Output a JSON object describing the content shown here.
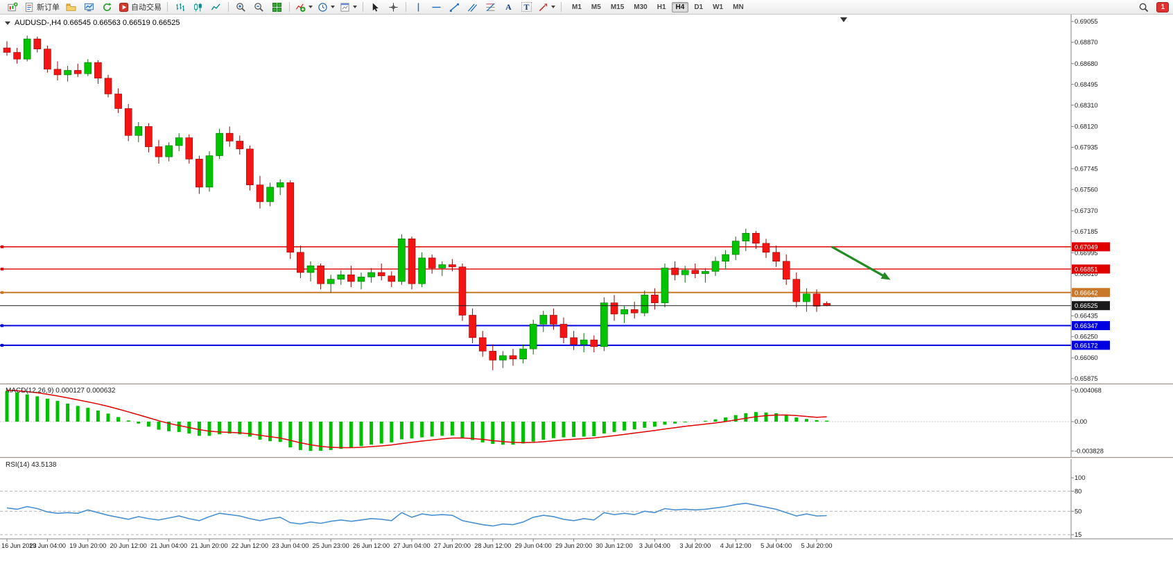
{
  "toolbar": {
    "new_order_label": "新订单",
    "autotrading_label": "自动交易",
    "timeframes": [
      "M1",
      "M5",
      "M15",
      "M30",
      "H1",
      "H4",
      "D1",
      "W1",
      "MN"
    ],
    "active_timeframe": "H4",
    "notification_count": "1",
    "text_tool_glyph": "A",
    "label_tool_glyph": "T"
  },
  "chart": {
    "symbol_line": "AUDUSD-,H4 0.66545 0.66563 0.66519 0.66525"
  },
  "indicators": {
    "macd_label": "MACD(12,26,9) 0.000127 0.000632",
    "rsi_label": "RSI(14) 43.5138"
  },
  "chart_data": {
    "type": "candlestick",
    "symbol": "AUDUSD",
    "timeframe": "H4",
    "quote": {
      "open": "0.66545",
      "high": "0.66563",
      "low": "0.66519",
      "close": "0.66525"
    },
    "bull_color": "#00c400",
    "bear_color": "#f51414",
    "y_axis": {
      "max": 0.69055,
      "min": 0.65875,
      "labels": [
        "0.69055",
        "0.68870",
        "0.68680",
        "0.68495",
        "0.68310",
        "0.68120",
        "0.67935",
        "0.67745",
        "0.67560",
        "0.67370",
        "0.67185",
        "0.66995",
        "0.66810",
        "0.66620",
        "0.66435",
        "0.66250",
        "0.66060",
        "0.65875"
      ]
    },
    "x_axis": {
      "bars_per_label": 4,
      "labels": [
        "16 Jun 2023",
        "19 Jun 04:00",
        "19 Jun 20:00",
        "20 Jun 12:00",
        "21 Jun 04:00",
        "21 Jun 20:00",
        "22 Jun 12:00",
        "23 Jun 04:00",
        "25 Jun 23:00",
        "26 Jun 12:00",
        "27 Jun 04:00",
        "27 Jun 20:00",
        "28 Jun 12:00",
        "29 Jun 04:00",
        "29 Jun 20:00",
        "30 Jun 12:00",
        "3 Jul 04:00",
        "3 Jul 20:00",
        "4 Jul 12:00",
        "5 Jul 04:00",
        "5 Jul 20:00"
      ]
    },
    "candles": [
      [
        0.6882,
        0.6888,
        0.6875,
        0.6878
      ],
      [
        0.6878,
        0.6882,
        0.6868,
        0.6872
      ],
      [
        0.6872,
        0.6893,
        0.687,
        0.689
      ],
      [
        0.689,
        0.6892,
        0.6878,
        0.6881
      ],
      [
        0.6881,
        0.6884,
        0.686,
        0.6863
      ],
      [
        0.6863,
        0.687,
        0.6853,
        0.6858
      ],
      [
        0.6858,
        0.6866,
        0.6852,
        0.6862
      ],
      [
        0.6862,
        0.6868,
        0.6856,
        0.6859
      ],
      [
        0.6859,
        0.6872,
        0.6857,
        0.6869
      ],
      [
        0.6869,
        0.6871,
        0.685,
        0.6855
      ],
      [
        0.6855,
        0.6858,
        0.6838,
        0.6841
      ],
      [
        0.6841,
        0.6846,
        0.6824,
        0.6828
      ],
      [
        0.6828,
        0.6832,
        0.6799,
        0.6804
      ],
      [
        0.6804,
        0.6816,
        0.6798,
        0.6812
      ],
      [
        0.6812,
        0.6815,
        0.6789,
        0.6794
      ],
      [
        0.6794,
        0.68,
        0.6779,
        0.6785
      ],
      [
        0.6785,
        0.6798,
        0.6781,
        0.6795
      ],
      [
        0.6795,
        0.6806,
        0.679,
        0.6802
      ],
      [
        0.6802,
        0.6805,
        0.6779,
        0.6783
      ],
      [
        0.6783,
        0.6786,
        0.6752,
        0.6758
      ],
      [
        0.6758,
        0.679,
        0.6754,
        0.6786
      ],
      [
        0.6786,
        0.681,
        0.6783,
        0.6806
      ],
      [
        0.6806,
        0.6812,
        0.6794,
        0.6799
      ],
      [
        0.6799,
        0.6804,
        0.6787,
        0.6792
      ],
      [
        0.6792,
        0.6795,
        0.6755,
        0.676
      ],
      [
        0.676,
        0.6768,
        0.6739,
        0.6745
      ],
      [
        0.6745,
        0.6762,
        0.6741,
        0.6758
      ],
      [
        0.6758,
        0.6765,
        0.6751,
        0.6762
      ],
      [
        0.6762,
        0.6764,
        0.6694,
        0.67
      ],
      [
        0.67,
        0.6706,
        0.6677,
        0.6682
      ],
      [
        0.6682,
        0.6692,
        0.6674,
        0.6688
      ],
      [
        0.6688,
        0.669,
        0.6667,
        0.6672
      ],
      [
        0.6672,
        0.668,
        0.6664,
        0.6676
      ],
      [
        0.6676,
        0.6684,
        0.6671,
        0.668
      ],
      [
        0.668,
        0.6688,
        0.6669,
        0.6674
      ],
      [
        0.6674,
        0.6682,
        0.6667,
        0.6678
      ],
      [
        0.6678,
        0.6686,
        0.6673,
        0.6682
      ],
      [
        0.6682,
        0.669,
        0.6675,
        0.6679
      ],
      [
        0.6679,
        0.6683,
        0.6669,
        0.6674
      ],
      [
        0.6674,
        0.6716,
        0.6671,
        0.6712
      ],
      [
        0.6712,
        0.6714,
        0.6667,
        0.6672
      ],
      [
        0.6672,
        0.67,
        0.6669,
        0.6695
      ],
      [
        0.6695,
        0.6698,
        0.6681,
        0.6686
      ],
      [
        0.6686,
        0.6692,
        0.6679,
        0.6689
      ],
      [
        0.6689,
        0.6694,
        0.6683,
        0.6687
      ],
      [
        0.6687,
        0.669,
        0.6639,
        0.6644
      ],
      [
        0.6644,
        0.665,
        0.6619,
        0.6624
      ],
      [
        0.6624,
        0.663,
        0.6607,
        0.6612
      ],
      [
        0.6612,
        0.6618,
        0.6595,
        0.6604
      ],
      [
        0.6604,
        0.6612,
        0.6597,
        0.6608
      ],
      [
        0.6608,
        0.6614,
        0.6599,
        0.6605
      ],
      [
        0.6605,
        0.6618,
        0.6601,
        0.6614
      ],
      [
        0.6614,
        0.664,
        0.6609,
        0.6636
      ],
      [
        0.6636,
        0.6648,
        0.6629,
        0.6644
      ],
      [
        0.6644,
        0.665,
        0.6631,
        0.6636
      ],
      [
        0.6636,
        0.6642,
        0.6619,
        0.6624
      ],
      [
        0.6624,
        0.663,
        0.6613,
        0.6618
      ],
      [
        0.6618,
        0.6628,
        0.6611,
        0.6622
      ],
      [
        0.6622,
        0.6626,
        0.6611,
        0.6616
      ],
      [
        0.6616,
        0.666,
        0.6612,
        0.6655
      ],
      [
        0.6655,
        0.6662,
        0.6639,
        0.6645
      ],
      [
        0.6645,
        0.6652,
        0.6637,
        0.6649
      ],
      [
        0.6649,
        0.6656,
        0.6641,
        0.6646
      ],
      [
        0.6646,
        0.6666,
        0.6643,
        0.6662
      ],
      [
        0.6662,
        0.6668,
        0.6649,
        0.6655
      ],
      [
        0.6655,
        0.669,
        0.6651,
        0.6686
      ],
      [
        0.6686,
        0.6692,
        0.6675,
        0.668
      ],
      [
        0.668,
        0.6688,
        0.6673,
        0.6684
      ],
      [
        0.6684,
        0.669,
        0.6677,
        0.6681
      ],
      [
        0.6681,
        0.6686,
        0.6673,
        0.6683
      ],
      [
        0.6683,
        0.6696,
        0.6679,
        0.6692
      ],
      [
        0.6692,
        0.6702,
        0.6685,
        0.6698
      ],
      [
        0.6698,
        0.6714,
        0.6693,
        0.671
      ],
      [
        0.671,
        0.6721,
        0.6701,
        0.6717
      ],
      [
        0.6717,
        0.6719,
        0.6703,
        0.6708
      ],
      [
        0.6708,
        0.6712,
        0.6695,
        0.67
      ],
      [
        0.67,
        0.6706,
        0.6687,
        0.6692
      ],
      [
        0.6692,
        0.6698,
        0.6671,
        0.6676
      ],
      [
        0.6676,
        0.6682,
        0.6651,
        0.6656
      ],
      [
        0.6656,
        0.6668,
        0.6647,
        0.6663
      ],
      [
        0.6663,
        0.6667,
        0.6647,
        0.6652
      ],
      [
        0.66545,
        0.66563,
        0.66519,
        0.66525
      ]
    ],
    "levels": [
      {
        "price": 0.67049,
        "label": "0.67049",
        "color": "#e00000",
        "width": 1.4
      },
      {
        "price": 0.66851,
        "label": "0.66851",
        "color": "#e00000",
        "width": 1.4
      },
      {
        "price": 0.66642,
        "label": "0.66642",
        "color": "#c9782a",
        "width": 2
      },
      {
        "price": 0.66525,
        "label": "0.66525",
        "color": "#1a1a1a",
        "width": 1,
        "bid": true
      },
      {
        "price": 0.66347,
        "label": "0.66347",
        "color": "#0000e0",
        "width": 2
      },
      {
        "price": 0.66172,
        "label": "0.66172",
        "color": "#0000e0",
        "width": 2
      }
    ],
    "trend_arrow": {
      "x1_bar": 81.5,
      "price1": 0.67049,
      "x2_bar": 87,
      "price2": 0.6677,
      "color": "#228b22"
    },
    "macd": {
      "params": "12,26,9",
      "value_main": 0.000127,
      "value_signal": 0.000632,
      "unit": 0.001,
      "histogram_color": "#00c000",
      "signal_color": "#e00000",
      "scale_labels": [
        "0.004068",
        "0.00",
        "-0.003828"
      ],
      "main": [
        4.0,
        3.8,
        3.55,
        3.3,
        3.0,
        2.7,
        2.35,
        2.05,
        1.8,
        1.45,
        1.05,
        0.6,
        0.15,
        -0.25,
        -0.65,
        -1.05,
        -1.25,
        -1.35,
        -1.55,
        -1.85,
        -1.85,
        -1.65,
        -1.55,
        -1.65,
        -1.95,
        -2.35,
        -2.55,
        -2.65,
        -3.35,
        -3.7,
        -3.82,
        -3.8,
        -3.7,
        -3.55,
        -3.4,
        -3.2,
        -3.0,
        -2.85,
        -2.7,
        -2.3,
        -2.2,
        -2.05,
        -1.95,
        -1.85,
        -1.8,
        -2.1,
        -2.4,
        -2.7,
        -2.9,
        -3.0,
        -3.0,
        -2.85,
        -2.6,
        -2.35,
        -2.15,
        -2.05,
        -2.0,
        -1.95,
        -1.9,
        -1.55,
        -1.35,
        -1.15,
        -1.0,
        -0.8,
        -0.65,
        -0.4,
        -0.25,
        -0.1,
        0.0,
        0.1,
        0.3,
        0.55,
        0.85,
        1.1,
        1.25,
        1.2,
        1.1,
        0.9,
        0.55,
        0.35,
        0.2,
        0.127
      ],
      "signal": [
        4.1,
        4.03,
        3.91,
        3.76,
        3.57,
        3.35,
        3.1,
        2.84,
        2.58,
        2.3,
        1.99,
        1.64,
        1.27,
        0.89,
        0.51,
        0.12,
        -0.23,
        -0.51,
        -0.77,
        -1.04,
        -1.24,
        -1.34,
        -1.4,
        -1.46,
        -1.58,
        -1.77,
        -1.97,
        -2.14,
        -2.44,
        -2.76,
        -3.02,
        -3.22,
        -3.34,
        -3.39,
        -3.39,
        -3.35,
        -3.26,
        -3.16,
        -3.04,
        -2.86,
        -2.69,
        -2.53,
        -2.39,
        -2.25,
        -2.14,
        -2.13,
        -2.2,
        -2.32,
        -2.47,
        -2.6,
        -2.7,
        -2.74,
        -2.7,
        -2.62,
        -2.5,
        -2.39,
        -2.29,
        -2.21,
        -2.13,
        -1.98,
        -1.83,
        -1.66,
        -1.49,
        -1.32,
        -1.15,
        -0.96,
        -0.79,
        -0.61,
        -0.46,
        -0.32,
        -0.17,
        0.01,
        0.22,
        0.44,
        0.64,
        0.78,
        0.86,
        0.87,
        0.79,
        0.68,
        0.56,
        0.632
      ]
    },
    "rsi": {
      "period": 14,
      "value": 43.5138,
      "line_color": "#4a90d2",
      "levels": [
        80,
        50,
        15
      ],
      "scale_labels": [
        "100",
        "80",
        "50",
        "15"
      ],
      "values": [
        55,
        53,
        57,
        54,
        49,
        47,
        48,
        47,
        52,
        48,
        44,
        41,
        38,
        42,
        39,
        37,
        40,
        43,
        39,
        36,
        42,
        47,
        45,
        43,
        39,
        36,
        39,
        41,
        33,
        31,
        34,
        32,
        35,
        37,
        35,
        37,
        39,
        38,
        36,
        48,
        41,
        46,
        44,
        45,
        44,
        36,
        33,
        30,
        28,
        31,
        30,
        34,
        41,
        44,
        42,
        38,
        36,
        39,
        37,
        48,
        45,
        47,
        45,
        50,
        48,
        54,
        52,
        53,
        52,
        53,
        55,
        57,
        60,
        62,
        59,
        56,
        53,
        48,
        43,
        46,
        43,
        43.51
      ]
    }
  }
}
